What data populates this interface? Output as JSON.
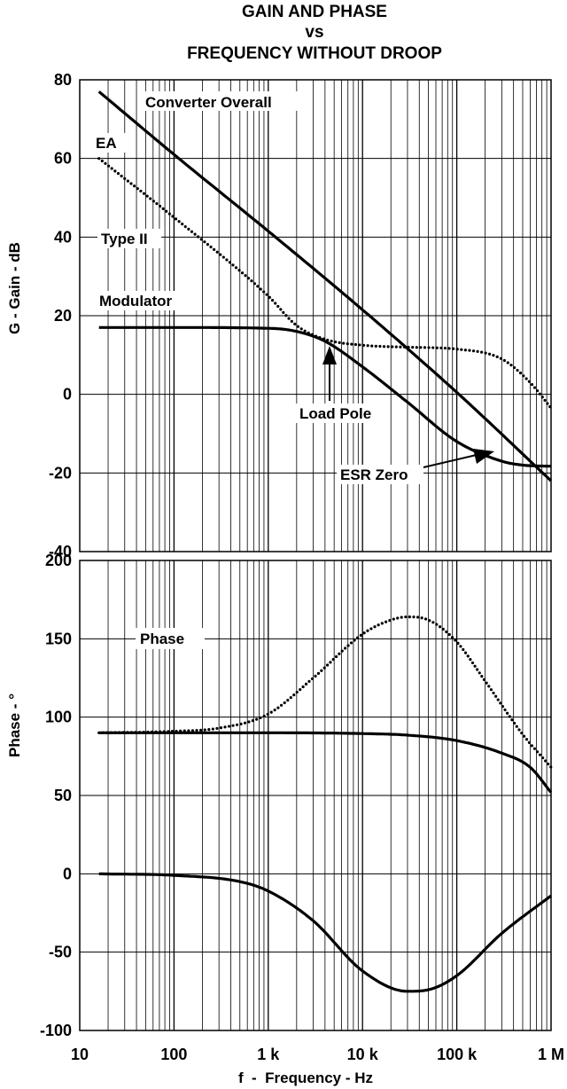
{
  "figure": {
    "title_lines": [
      "GAIN AND PHASE",
      "vs",
      "FREQUENCY WITHOUT DROOP"
    ],
    "xlabel": "f  -  Frequency - Hz",
    "x_tick_labels": [
      "10",
      "100",
      "1 k",
      "10 k",
      "100 k",
      "1 M"
    ]
  },
  "chart_data": [
    {
      "type": "line",
      "title": "GAIN AND PHASE vs FREQUENCY WITHOUT DROOP",
      "xlabel": "f  -  Frequency - Hz",
      "ylabel": "G - Gain - dB",
      "xscale": "log",
      "xlim": [
        10,
        1000000
      ],
      "ylim": [
        -40,
        80
      ],
      "y_ticks": [
        80,
        60,
        40,
        20,
        0,
        -20,
        -40
      ],
      "grid": true,
      "series": [
        {
          "name": "Converter Overall",
          "style": "solid",
          "x": [
            16,
            100,
            1000,
            10000,
            100000,
            1000000
          ],
          "y": [
            77,
            61,
            41.5,
            21.5,
            0.5,
            -22
          ]
        },
        {
          "name": "EA",
          "style": "dotted",
          "x": [
            16,
            100,
            1000,
            2000,
            4000,
            10000,
            30000,
            100000,
            300000,
            600000,
            1000000
          ],
          "y": [
            60,
            45,
            25,
            17.5,
            14,
            12.5,
            12,
            11.5,
            9,
            3,
            -3.5
          ]
        },
        {
          "name": "Modulator",
          "style": "solid",
          "x": [
            16,
            100,
            1000,
            2000,
            4000,
            10000,
            30000,
            100000,
            300000,
            500000,
            1000000
          ],
          "y": [
            17,
            17,
            16.8,
            16,
            13.5,
            7,
            -2,
            -12,
            -17,
            -18,
            -18.3
          ]
        }
      ],
      "annotations": [
        "Converter Overall",
        "EA",
        "Type II",
        "Modulator",
        "Load Pole",
        "ESR Zero"
      ]
    },
    {
      "type": "line",
      "xlabel": "f  -  Frequency - Hz",
      "ylabel": "Phase - °",
      "xscale": "log",
      "xlim": [
        10,
        1000000
      ],
      "ylim": [
        -100,
        200
      ],
      "y_ticks": [
        200,
        150,
        100,
        50,
        0,
        -50,
        -100
      ],
      "grid": true,
      "series": [
        {
          "style": "dotted",
          "x": [
            16,
            100,
            300,
            1000,
            3000,
            10000,
            20000,
            30000,
            50000,
            100000,
            200000,
            500000,
            1000000
          ],
          "y": [
            90,
            91,
            93,
            102,
            125,
            153,
            162,
            164,
            162,
            148,
            123,
            89,
            68
          ]
        },
        {
          "style": "solid",
          "x": [
            16,
            100,
            1000,
            10000,
            30000,
            100000,
            300000,
            600000,
            1000000
          ],
          "y": [
            90,
            90,
            90,
            89.5,
            88.5,
            85,
            77,
            68,
            52
          ]
        },
        {
          "style": "solid",
          "x": [
            16,
            100,
            500,
            1000,
            3000,
            10000,
            30000,
            50000,
            100000,
            300000,
            1000000
          ],
          "y": [
            0,
            -1,
            -5,
            -11,
            -30,
            -62,
            -75,
            -74,
            -65,
            -38,
            -14
          ]
        }
      ],
      "annotations": [
        "Phase"
      ]
    }
  ]
}
